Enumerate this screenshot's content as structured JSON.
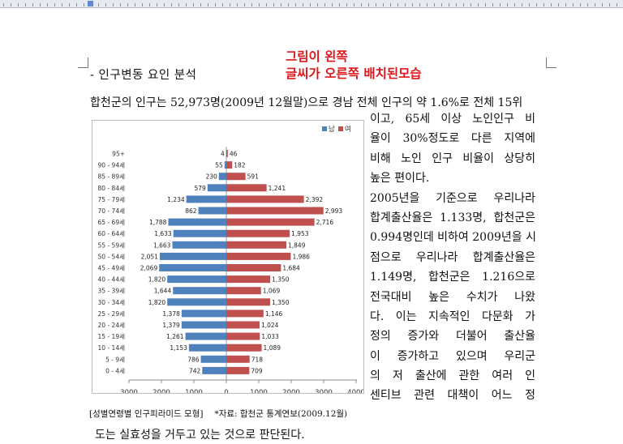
{
  "document": {
    "heading": "- 인구변동 요인 분석",
    "editor_note": [
      "그림이 왼쪽",
      "글씨가 오른쪽 배치된모습"
    ],
    "paragraph_top": "합천군의 인구는 52,973명(2009년 12월말)으로 경남 전체 인구의 약 1.6%로 전체 15위",
    "side_lines": [
      "이고,  65세 이상 노인인구 비",
      "율이 30%정도로 다른 지역에",
      "비해 노인 인구 비율이 상당히",
      "높은 편이다.",
      " 2005년을 기준으로 우리나라",
      "합계출산율은 1.133명, 합천군은",
      "0.994명인데 비하여 2009년을 시",
      "점으로 우리나라 합계출산율은",
      "1.149명, 합천군은 1.216으로",
      "전국대비 높은 수치가 나왔",
      "다. 이는 지속적인 다문화 가",
      "정의 증가와 더불어 출산율",
      "이 증가하고 있으며 우리군",
      "의 저 출산에 관한 여러 인",
      "센티브 관련 대책이 어느 정"
    ],
    "caption": "[성별연령별 인구피라미드 모형]",
    "source": "*자료: 합천군 통계연보(2009.12월)",
    "paragraph_bottom": "도는 실효성을 거두고 있는 것으로 판단된다."
  },
  "chart_data": {
    "type": "bar",
    "orientation": "horizontal-pyramid",
    "categories": [
      "95+",
      "90 - 94세",
      "85 - 89세",
      "80 - 84세",
      "75 - 79세",
      "70 - 74세",
      "65 - 69세",
      "60 - 64세",
      "55 - 59세",
      "50 - 54세",
      "45 - 49세",
      "40 - 44세",
      "35 - 39세",
      "30 - 34세",
      "25 - 29세",
      "20 - 24세",
      "15 - 19세",
      "10 - 14세",
      "5 - 9세",
      "0 - 4세"
    ],
    "series": [
      {
        "name": "남",
        "color": "#4f81bd",
        "values": [
          4,
          55,
          230,
          579,
          1234,
          862,
          1788,
          1633,
          1663,
          2051,
          2069,
          1820,
          1644,
          1820,
          1378,
          1379,
          1261,
          1153,
          786,
          742
        ]
      },
      {
        "name": "여",
        "color": "#c0504d",
        "values": [
          46,
          182,
          591,
          1241,
          2392,
          2993,
          2716,
          1953,
          1849,
          1986,
          1684,
          1350,
          1069,
          1350,
          1146,
          1024,
          1033,
          1089,
          718,
          709
        ]
      }
    ],
    "xticks": [
      "3000",
      "2000",
      "1000",
      "0",
      "1000",
      "2000",
      "3000",
      "4000"
    ],
    "xlim": [
      -3000,
      4000
    ],
    "legend_position": "top-right"
  }
}
